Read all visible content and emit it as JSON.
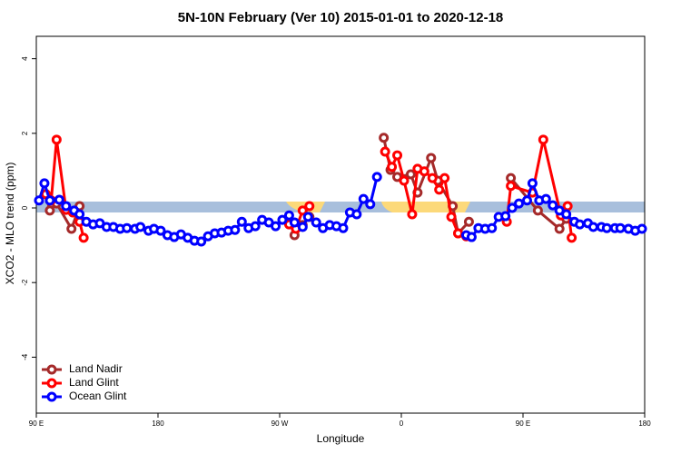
{
  "chart_data": {
    "type": "line",
    "title": "5N-10N February (Ver 10)   2015-01-01 to 2020-12-18",
    "x_label": "Longitude",
    "y_label": "XCO2 - MLO trend (ppm)",
    "xlim": [
      90,
      540
    ],
    "ylim": [
      -5.5,
      4.6
    ],
    "xticks": [
      {
        "value": 90,
        "label": "90 E"
      },
      {
        "value": 180,
        "label": "180"
      },
      {
        "value": 270,
        "label": "90 W"
      },
      {
        "value": 360,
        "label": "0"
      },
      {
        "value": 450,
        "label": "90 E"
      },
      {
        "value": 540,
        "label": "180"
      }
    ],
    "yticks": [
      -4,
      -2,
      0,
      2,
      4
    ],
    "legend": "bottom-left",
    "series": [
      {
        "name": "Land Nadir",
        "color": "#a52a2a",
        "x": [
          97,
          100,
          105,
          116,
          122,
          200,
          281,
          287,
          292,
          320,
          347,
          352,
          357,
          367,
          372,
          382,
          387,
          398,
          402,
          410,
          425,
          441,
          461,
          477,
          482
        ],
        "values": [
          0.37,
          -0.07,
          0.12,
          -0.56,
          0.05,
          null,
          -0.73,
          -0.46,
          -0.24,
          null,
          1.88,
          1.02,
          0.83,
          0.9,
          0.41,
          1.34,
          0.73,
          0.05,
          -0.68,
          -0.37,
          null,
          0.8,
          -0.07,
          -0.56,
          -0.29
        ]
      },
      {
        "name": "Land Glint",
        "color": "#ff0000",
        "x": [
          97,
          101,
          105,
          112,
          117,
          122,
          125,
          200,
          277,
          282,
          287,
          292,
          320,
          348,
          353,
          357,
          362,
          368,
          372,
          377,
          383,
          388,
          392,
          397,
          402,
          408,
          425,
          438,
          441,
          457,
          465,
          478,
          483,
          486
        ],
        "values": [
          0.37,
          0.2,
          1.83,
          -0.05,
          -0.12,
          -0.37,
          -0.8,
          null,
          -0.44,
          -0.56,
          -0.07,
          0.05,
          null,
          1.51,
          1.1,
          1.41,
          0.73,
          -0.17,
          1.05,
          0.98,
          0.8,
          0.49,
          0.8,
          -0.24,
          -0.68,
          -0.76,
          null,
          -0.37,
          0.59,
          0.41,
          1.83,
          -0.2,
          0.05,
          -0.8
        ]
      },
      {
        "name": "Ocean Glint",
        "color": "#0000ff",
        "x": [
          92,
          96,
          100,
          107,
          112,
          118,
          122,
          127,
          132,
          137,
          142,
          147,
          152,
          157,
          163,
          167,
          173,
          177,
          182,
          187,
          192,
          197,
          202,
          207,
          212,
          217,
          222,
          227,
          232,
          237,
          242,
          247,
          252,
          257,
          262,
          267,
          272,
          277,
          281,
          287,
          291,
          297,
          302,
          307,
          312,
          317,
          322,
          327,
          332,
          337,
          342,
          375,
          408,
          412,
          417,
          422,
          427,
          432,
          437,
          442,
          447,
          453,
          457,
          462,
          467,
          472,
          477,
          482,
          488,
          492,
          498,
          502,
          508,
          512,
          518,
          522,
          528,
          533,
          538
        ],
        "values": [
          0.2,
          0.66,
          0.2,
          0.22,
          0.05,
          -0.07,
          -0.17,
          -0.37,
          -0.44,
          -0.41,
          -0.51,
          -0.51,
          -0.56,
          -0.54,
          -0.56,
          -0.51,
          -0.61,
          -0.56,
          -0.61,
          -0.73,
          -0.78,
          -0.71,
          -0.8,
          -0.88,
          -0.9,
          -0.76,
          -0.68,
          -0.66,
          -0.61,
          -0.59,
          -0.37,
          -0.54,
          -0.49,
          -0.32,
          -0.39,
          -0.49,
          -0.32,
          -0.2,
          -0.39,
          -0.51,
          -0.24,
          -0.39,
          -0.54,
          -0.46,
          -0.49,
          -0.54,
          -0.12,
          -0.17,
          0.24,
          0.1,
          0.83,
          null,
          -0.73,
          -0.78,
          -0.54,
          -0.56,
          -0.54,
          -0.24,
          -0.22,
          0,
          0.12,
          0.2,
          0.66,
          0.2,
          0.24,
          0.07,
          -0.07,
          -0.17,
          -0.37,
          -0.44,
          -0.41,
          -0.51,
          -0.51,
          -0.54,
          -0.54,
          -0.54,
          -0.56,
          -0.61,
          -0.56
        ]
      }
    ]
  }
}
